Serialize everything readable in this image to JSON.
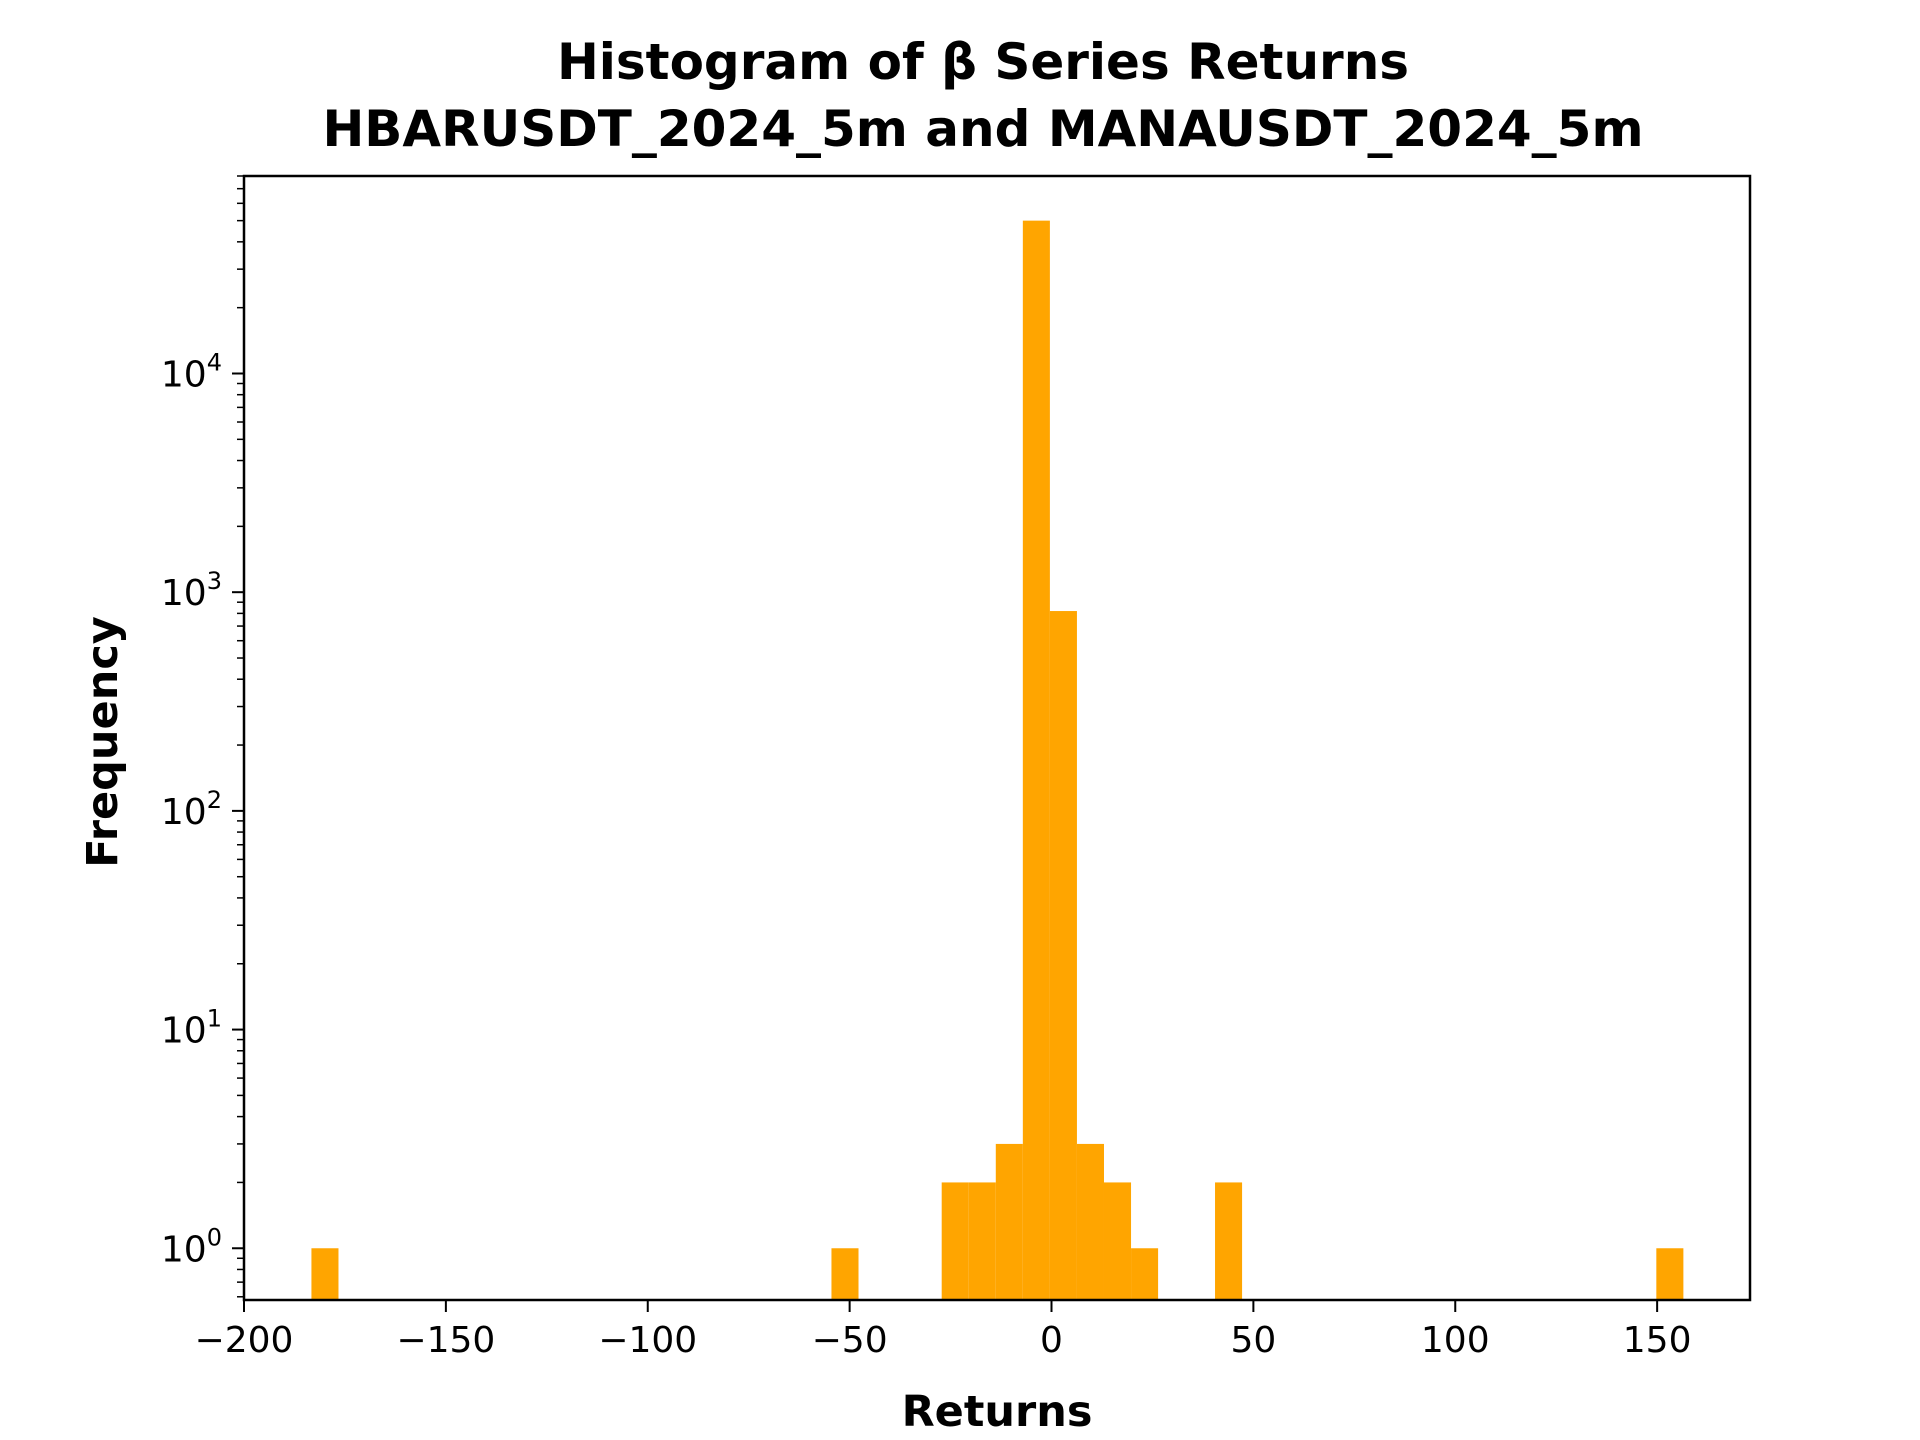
{
  "chart_data": {
    "type": "bar",
    "title_line1": "Histogram of β Series Returns",
    "title_line2": "HBARUSDT_2024_5m and MANAUSDT_2024_5m",
    "xlabel": "Returns",
    "ylabel": "Frequency",
    "bar_color": "#ffa500",
    "y_scale": "log",
    "xlim": [
      -200,
      173
    ],
    "ylim": [
      0.58,
      80000
    ],
    "x_ticks": [
      -200,
      -150,
      -100,
      -50,
      0,
      50,
      100,
      150
    ],
    "x_tick_labels": [
      "−200",
      "−150",
      "−100",
      "−50",
      "0",
      "50",
      "100",
      "150"
    ],
    "y_ticks": [
      {
        "value": 1,
        "base": "10",
        "exp": "0"
      },
      {
        "value": 10,
        "base": "10",
        "exp": "1"
      },
      {
        "value": 100,
        "base": "10",
        "exp": "2"
      },
      {
        "value": 1000,
        "base": "10",
        "exp": "3"
      },
      {
        "value": 10000,
        "base": "10",
        "exp": "4"
      }
    ],
    "bin_width": 6.7,
    "bins": [
      {
        "start": -183.3,
        "count": 1
      },
      {
        "start": -54.5,
        "count": 1
      },
      {
        "start": -27.2,
        "count": 2
      },
      {
        "start": -20.5,
        "count": 2
      },
      {
        "start": -13.8,
        "count": 3
      },
      {
        "start": -7.1,
        "count": 50000
      },
      {
        "start": -0.4,
        "count": 820
      },
      {
        "start": 6.3,
        "count": 3
      },
      {
        "start": 13.0,
        "count": 2
      },
      {
        "start": 19.7,
        "count": 1
      },
      {
        "start": 40.5,
        "count": 2
      },
      {
        "start": 149.8,
        "count": 1
      }
    ]
  }
}
